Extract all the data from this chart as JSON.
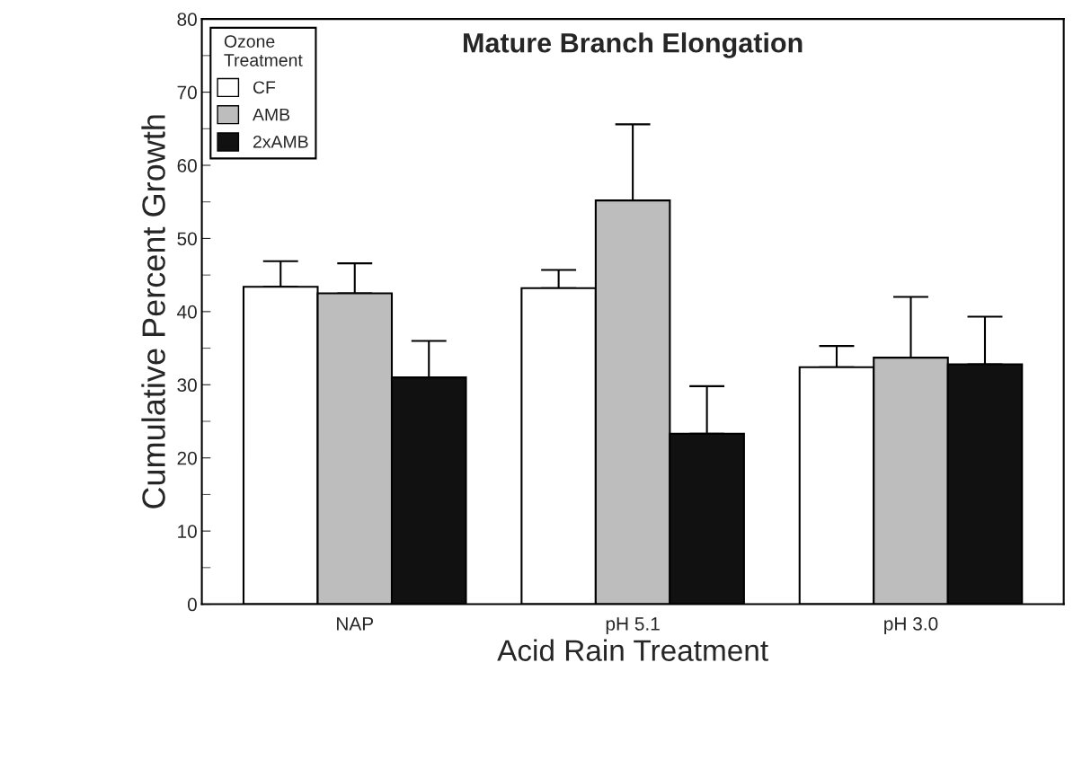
{
  "chart_data": {
    "type": "bar",
    "title": "Mature Branch Elongation",
    "xlabel": "Acid Rain Treatment",
    "ylabel": "Cumulative Percent Growth",
    "legend_title": "Ozone\nTreatment",
    "categories": [
      "NAP",
      "pH 5.1",
      "pH 3.0"
    ],
    "series": [
      {
        "name": "CF",
        "color": "#ffffff",
        "values": [
          43.4,
          43.2,
          32.4
        ],
        "errors": [
          [
            43.4,
            46.9
          ],
          [
            43.2,
            45.7
          ],
          [
            32.4,
            35.3
          ]
        ]
      },
      {
        "name": "AMB",
        "color": "#bdbdbd",
        "values": [
          42.5,
          55.2,
          33.7
        ],
        "errors": [
          [
            42.5,
            46.6
          ],
          [
            55.2,
            65.6
          ],
          [
            33.7,
            42.0
          ]
        ]
      },
      {
        "name": "2xAMB",
        "color": "#111111",
        "values": [
          31.0,
          23.3,
          32.8
        ],
        "errors": [
          [
            31.0,
            36.0
          ],
          [
            23.3,
            29.8
          ],
          [
            32.8,
            39.3
          ]
        ]
      }
    ],
    "ylim": [
      0,
      80
    ],
    "yticks": [
      0,
      10,
      20,
      30,
      40,
      50,
      60,
      70,
      80
    ],
    "grid": false,
    "legend": "top left"
  }
}
